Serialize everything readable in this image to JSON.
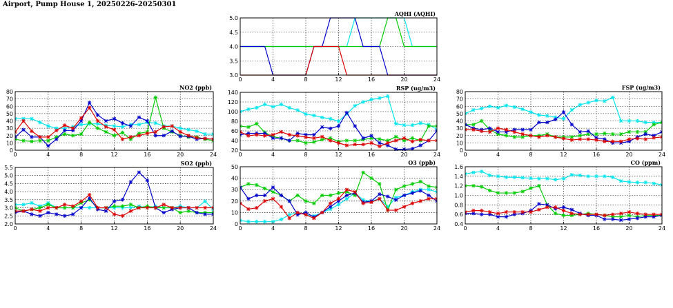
{
  "page_title": "Airport, Pump House 1, 20250226-20250301",
  "series_colors": {
    "a": "#00e5ee",
    "b": "#00cc00",
    "c": "#0000cc",
    "d": "#dd0000"
  },
  "chart_data": [
    {
      "id": "aqhi",
      "type": "line",
      "title": "AQHI (AQHI)",
      "x_ticks": [
        0,
        4,
        8,
        12,
        16,
        20,
        24
      ],
      "xlim": [
        0,
        24
      ],
      "ylim": [
        3.0,
        5.0
      ],
      "y_ticks": [
        3.0,
        3.5,
        4.0,
        4.5,
        5.0
      ],
      "y_tick_labels": [
        "3.0",
        "3.5",
        "4.0",
        "4.5",
        "5.0"
      ],
      "grid": true,
      "markers": false,
      "series": [
        {
          "color": "cyan",
          "values": [
            4,
            4,
            4,
            4,
            4,
            4,
            4,
            4,
            4,
            4,
            4,
            4,
            4,
            4,
            5,
            5,
            5,
            5,
            5,
            5,
            5,
            4,
            4,
            4,
            4
          ]
        },
        {
          "color": "green",
          "values": [
            4,
            4,
            4,
            4,
            4,
            4,
            4,
            4,
            4,
            4,
            4,
            4,
            4,
            4,
            4,
            4,
            4,
            4,
            5,
            5,
            4,
            4,
            4,
            4,
            4
          ]
        },
        {
          "color": "blue",
          "values": [
            4,
            4,
            4,
            4,
            3,
            3,
            3,
            3,
            3,
            4,
            4,
            5,
            5,
            5,
            5,
            4,
            4,
            4,
            3,
            3,
            3,
            3,
            3,
            3,
            3
          ]
        },
        {
          "color": "red",
          "values": [
            3,
            3,
            3,
            3,
            3,
            3,
            3,
            3,
            3,
            4,
            4,
            4,
            4,
            3,
            3,
            3,
            3,
            3,
            3,
            3,
            3,
            3,
            3,
            3,
            3
          ]
        }
      ]
    },
    {
      "id": "no2",
      "type": "line",
      "title": "NO2 (ppb)",
      "x_ticks": [
        0,
        4,
        8,
        12,
        16,
        20,
        24
      ],
      "xlim": [
        0,
        24
      ],
      "ylim": [
        0,
        80
      ],
      "y_ticks": [
        0,
        10,
        20,
        30,
        40,
        50,
        60,
        70,
        80
      ],
      "y_tick_labels": [
        "0",
        "10",
        "20",
        "30",
        "40",
        "50",
        "60",
        "70",
        "80"
      ],
      "grid": true,
      "markers": true,
      "series": [
        {
          "color": "cyan",
          "values": [
            43,
            43,
            43,
            38,
            33,
            30,
            30,
            32,
            35,
            36,
            36,
            34,
            33,
            32,
            35,
            35,
            38,
            37,
            33,
            33,
            30,
            28,
            26,
            22,
            22
          ]
        },
        {
          "color": "green",
          "values": [
            15,
            13,
            12,
            13,
            13,
            18,
            22,
            20,
            22,
            38,
            30,
            25,
            20,
            24,
            15,
            23,
            25,
            72,
            30,
            25,
            20,
            18,
            18,
            15,
            13
          ]
        },
        {
          "color": "blue",
          "values": [
            18,
            28,
            18,
            18,
            6,
            15,
            27,
            27,
            40,
            65,
            48,
            40,
            43,
            37,
            33,
            45,
            40,
            20,
            20,
            26,
            19,
            19,
            15,
            16,
            15
          ]
        },
        {
          "color": "red",
          "values": [
            25,
            40,
            26,
            18,
            18,
            27,
            34,
            30,
            44,
            58,
            40,
            32,
            28,
            15,
            18,
            20,
            23,
            25,
            32,
            33,
            25,
            20,
            17,
            16,
            15
          ]
        }
      ]
    },
    {
      "id": "rsp",
      "type": "line",
      "title": "RSP (ug/m3)",
      "x_ticks": [
        0,
        4,
        8,
        12,
        16,
        20,
        24
      ],
      "xlim": [
        0,
        24
      ],
      "ylim": [
        20,
        140
      ],
      "y_ticks": [
        20,
        40,
        60,
        80,
        100,
        120,
        140
      ],
      "y_tick_labels": [
        "20",
        "40",
        "60",
        "80",
        "100",
        "120",
        "140"
      ],
      "grid": true,
      "markers": true,
      "series": [
        {
          "color": "cyan",
          "values": [
            100,
            105,
            108,
            115,
            110,
            115,
            108,
            103,
            95,
            92,
            88,
            85,
            80,
            95,
            112,
            120,
            125,
            128,
            132,
            75,
            72,
            72,
            76,
            73,
            63
          ]
        },
        {
          "color": "green",
          "values": [
            70,
            68,
            75,
            57,
            48,
            45,
            40,
            40,
            35,
            37,
            42,
            45,
            38,
            40,
            40,
            42,
            45,
            43,
            40,
            48,
            40,
            45,
            40,
            70,
            70
          ]
        },
        {
          "color": "blue",
          "values": [
            52,
            55,
            55,
            55,
            45,
            45,
            40,
            55,
            52,
            52,
            68,
            65,
            70,
            98,
            70,
            45,
            50,
            35,
            30,
            22,
            22,
            23,
            30,
            40,
            60
          ]
        },
        {
          "color": "red",
          "values": [
            58,
            50,
            52,
            50,
            52,
            58,
            52,
            50,
            47,
            45,
            48,
            40,
            35,
            30,
            32,
            32,
            35,
            28,
            35,
            40,
            45,
            38,
            42,
            40,
            40
          ]
        }
      ]
    },
    {
      "id": "fsp",
      "type": "line",
      "title": "FSP (ug/m3)",
      "x_ticks": [
        0,
        4,
        8,
        12,
        16,
        20,
        24
      ],
      "xlim": [
        0,
        24
      ],
      "ylim": [
        0,
        80
      ],
      "y_ticks": [
        0,
        10,
        20,
        30,
        40,
        50,
        60,
        70,
        80
      ],
      "y_tick_labels": [
        "0",
        "10",
        "20",
        "30",
        "40",
        "50",
        "60",
        "70",
        "80"
      ],
      "grid": true,
      "markers": true,
      "series": [
        {
          "color": "cyan",
          "values": [
            50,
            55,
            57,
            60,
            58,
            61,
            59,
            56,
            52,
            48,
            47,
            45,
            43,
            55,
            62,
            65,
            68,
            67,
            72,
            40,
            40,
            40,
            38,
            38,
            38
          ]
        },
        {
          "color": "green",
          "values": [
            35,
            35,
            40,
            28,
            22,
            20,
            18,
            18,
            20,
            20,
            22,
            18,
            18,
            18,
            20,
            22,
            22,
            23,
            22,
            22,
            25,
            25,
            25,
            35,
            38
          ]
        },
        {
          "color": "blue",
          "values": [
            35,
            30,
            28,
            30,
            25,
            25,
            28,
            28,
            28,
            38,
            38,
            42,
            52,
            35,
            25,
            26,
            17,
            15,
            10,
            10,
            12,
            18,
            22,
            20,
            25
          ]
        },
        {
          "color": "red",
          "values": [
            28,
            28,
            26,
            25,
            30,
            28,
            25,
            22,
            20,
            18,
            20,
            18,
            16,
            14,
            15,
            15,
            14,
            12,
            12,
            12,
            15,
            16,
            15,
            17,
            18
          ]
        }
      ]
    },
    {
      "id": "so2",
      "type": "line",
      "title": "SO2 (ppb)",
      "x_ticks": [
        0,
        4,
        8,
        12,
        16,
        20,
        24
      ],
      "xlim": [
        0,
        24
      ],
      "ylim": [
        2.0,
        5.5
      ],
      "y_ticks": [
        2.0,
        2.5,
        3.0,
        3.5,
        4.0,
        4.5,
        5.0,
        5.5
      ],
      "y_tick_labels": [
        "2.0",
        "2.5",
        "3.0",
        "3.5",
        "4.0",
        "4.5",
        "5.0",
        "5.5"
      ],
      "grid": true,
      "markers": true,
      "series": [
        {
          "color": "cyan",
          "values": [
            3.2,
            3.2,
            3.3,
            3.1,
            3.3,
            3.0,
            3.0,
            3.0,
            3.0,
            3.0,
            3.0,
            3.0,
            3.0,
            3.0,
            3.0,
            3.1,
            3.0,
            3.1,
            3.0,
            3.0,
            3.1,
            3.0,
            3.0,
            3.4,
            2.9
          ]
        },
        {
          "color": "green",
          "values": [
            3.0,
            2.8,
            2.9,
            3.0,
            3.2,
            3.0,
            3.0,
            3.0,
            3.3,
            3.5,
            3.0,
            3.0,
            3.1,
            3.1,
            3.2,
            3.0,
            3.1,
            3.0,
            3.0,
            3.0,
            2.7,
            2.8,
            2.7,
            2.7,
            2.7
          ]
        },
        {
          "color": "blue",
          "values": [
            2.7,
            2.8,
            2.6,
            2.5,
            2.7,
            2.6,
            2.5,
            2.6,
            3.0,
            3.6,
            2.9,
            2.8,
            3.4,
            3.5,
            4.6,
            5.2,
            4.7,
            3.0,
            2.7,
            2.9,
            3.0,
            3.0,
            2.7,
            2.6,
            2.6
          ]
        },
        {
          "color": "red",
          "values": [
            2.8,
            2.8,
            2.9,
            2.8,
            3.0,
            3.0,
            3.2,
            3.1,
            3.4,
            3.8,
            3.0,
            3.0,
            2.6,
            2.5,
            2.8,
            3.0,
            3.0,
            3.0,
            3.2,
            3.0,
            3.0,
            3.0,
            3.0,
            3.0,
            3.0
          ]
        }
      ]
    },
    {
      "id": "o3",
      "type": "line",
      "title": "O3 (ppb)",
      "x_ticks": [
        0,
        4,
        8,
        12,
        16,
        20,
        24
      ],
      "xlim": [
        0,
        24
      ],
      "ylim": [
        0,
        50
      ],
      "y_ticks": [
        0,
        10,
        20,
        30,
        40,
        50
      ],
      "y_tick_labels": [
        "0",
        "10",
        "20",
        "30",
        "40",
        "50"
      ],
      "grid": true,
      "markers": true,
      "series": [
        {
          "color": "cyan",
          "values": [
            3,
            2,
            2,
            2,
            2,
            4,
            8,
            10,
            8,
            7,
            10,
            13,
            17,
            22,
            27,
            21,
            20,
            22,
            15,
            23,
            25,
            28,
            30,
            30,
            28
          ]
        },
        {
          "color": "green",
          "values": [
            32,
            35,
            34,
            31,
            28,
            25,
            20,
            25,
            20,
            18,
            25,
            25,
            27,
            28,
            25,
            45,
            40,
            35,
            12,
            30,
            33,
            35,
            37,
            33,
            32
          ]
        },
        {
          "color": "blue",
          "values": [
            32,
            22,
            25,
            25,
            32,
            25,
            20,
            8,
            10,
            6,
            10,
            15,
            20,
            25,
            27,
            19,
            20,
            26,
            24,
            21,
            25,
            27,
            29,
            25,
            20
          ]
        },
        {
          "color": "red",
          "values": [
            18,
            13,
            14,
            20,
            22,
            15,
            5,
            10,
            8,
            5,
            10,
            18,
            22,
            30,
            28,
            18,
            19,
            22,
            12,
            12,
            15,
            18,
            20,
            22,
            22
          ]
        }
      ]
    },
    {
      "id": "co",
      "type": "line",
      "title": "CO (ppm)",
      "x_ticks": [
        0,
        4,
        8,
        12,
        16,
        20,
        24
      ],
      "xlim": [
        0,
        24
      ],
      "ylim": [
        0.4,
        1.6
      ],
      "y_ticks": [
        0.4,
        0.6,
        0.8,
        1.0,
        1.2,
        1.4,
        1.6
      ],
      "y_tick_labels": [
        "0.4",
        "0.6",
        "0.8",
        "1.0",
        "1.2",
        "1.4",
        "1.6"
      ],
      "grid": true,
      "markers": true,
      "series": [
        {
          "color": "cyan",
          "values": [
            1.45,
            1.48,
            1.5,
            1.42,
            1.4,
            1.38,
            1.38,
            1.37,
            1.36,
            1.35,
            1.35,
            1.33,
            1.35,
            1.43,
            1.42,
            1.4,
            1.4,
            1.4,
            1.38,
            1.3,
            1.28,
            1.27,
            1.27,
            1.25,
            1.22
          ]
        },
        {
          "color": "green",
          "values": [
            1.2,
            1.2,
            1.18,
            1.1,
            1.05,
            1.05,
            1.05,
            1.08,
            1.15,
            1.2,
            0.8,
            0.62,
            0.58,
            0.58,
            0.6,
            0.62,
            0.6,
            0.58,
            0.55,
            0.55,
            0.58,
            0.55,
            0.58,
            0.58,
            0.58
          ]
        },
        {
          "color": "blue",
          "values": [
            0.62,
            0.62,
            0.6,
            0.6,
            0.55,
            0.55,
            0.6,
            0.62,
            0.68,
            0.82,
            0.8,
            0.72,
            0.75,
            0.7,
            0.62,
            0.58,
            0.58,
            0.5,
            0.5,
            0.48,
            0.5,
            0.52,
            0.55,
            0.55,
            0.58
          ]
        },
        {
          "color": "red",
          "values": [
            0.65,
            0.68,
            0.68,
            0.65,
            0.62,
            0.65,
            0.65,
            0.65,
            0.65,
            0.7,
            0.75,
            0.75,
            0.68,
            0.62,
            0.6,
            0.6,
            0.6,
            0.58,
            0.6,
            0.62,
            0.65,
            0.62,
            0.6,
            0.6,
            0.6
          ]
        }
      ]
    }
  ]
}
